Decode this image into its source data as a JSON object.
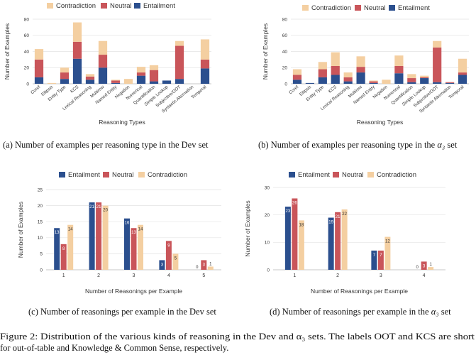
{
  "colors": {
    "entailment": "#2b4f8e",
    "neutral": "#c9555a",
    "contradiction": "#f4cfa1"
  },
  "chart_data": [
    {
      "type": "bar",
      "stacked": true,
      "panel": "a",
      "caption": "(a) Number of examples per reasoning type in the Dev set",
      "xlabel": "Reasoning Types",
      "ylabel": "Number of Examples",
      "ylim": [
        0,
        80
      ],
      "yticks": [
        0,
        20,
        40,
        60,
        80
      ],
      "grid": true,
      "legend": "top-center",
      "legend_order": [
        "Contradiction",
        "Neutral",
        "Entailment"
      ],
      "categories": [
        "Coref",
        "Ellipsis",
        "Entity Type",
        "KCS",
        "Lexical Reasoning",
        "Multirow",
        "Named Entity",
        "Negation",
        "Numerical",
        "Quantification",
        "Simple Lookup",
        "Subjective/OOT",
        "Syntactic Alternation",
        "Temporal"
      ],
      "series": [
        {
          "name": "Entailment",
          "values": [
            8,
            0,
            6,
            31,
            5,
            20,
            1,
            0,
            10,
            3,
            4,
            6,
            0,
            19
          ]
        },
        {
          "name": "Neutral",
          "values": [
            22,
            0,
            8,
            21,
            4,
            16,
            3,
            0,
            4,
            14,
            0,
            41,
            0,
            11
          ]
        },
        {
          "name": "Contradiction",
          "values": [
            13,
            1,
            6,
            24,
            3,
            17,
            1,
            6,
            7,
            6,
            0,
            6,
            0,
            25
          ]
        }
      ]
    },
    {
      "type": "bar",
      "stacked": true,
      "panel": "b",
      "caption_prefix": "(b) Number of examples per reasoning type in the ",
      "caption_set": "α₃",
      "caption_suffix": " set",
      "xlabel": "Reasoning Types",
      "ylabel": "Number of Examples",
      "ylim": [
        0,
        80
      ],
      "yticks": [
        0,
        20,
        40,
        60,
        80
      ],
      "grid": true,
      "legend": "top-center",
      "legend_order": [
        "Contradiction",
        "Neutral",
        "Entailment"
      ],
      "categories": [
        "Coref",
        "Ellipsis",
        "Entity Type",
        "KCS",
        "Lexical Reasoning",
        "Multirow",
        "Named Entity",
        "Negation",
        "Numerical",
        "Quantification",
        "Simple Lookup",
        "Subjective/OOT",
        "Syntactic Alternation",
        "Temporal"
      ],
      "series": [
        {
          "name": "Entailment",
          "values": [
            5,
            1,
            8,
            11,
            3,
            14,
            1,
            0,
            13,
            2,
            7,
            2,
            1,
            11
          ]
        },
        {
          "name": "Neutral",
          "values": [
            6,
            0,
            10,
            11,
            5,
            7,
            2,
            0,
            9,
            5,
            1,
            43,
            1,
            3
          ]
        },
        {
          "name": "Contradiction",
          "values": [
            7,
            0,
            9,
            17,
            6,
            13,
            1,
            5,
            13,
            5,
            2,
            8,
            0,
            17
          ]
        }
      ]
    },
    {
      "type": "bar",
      "stacked": false,
      "panel": "c",
      "caption": "(c) Number of reasonings per example in the Dev set",
      "xlabel": "Number of Reasonings per Example",
      "ylabel": "Number of Examples",
      "ylim": [
        0,
        25
      ],
      "yticks": [
        0,
        5,
        10,
        15,
        20,
        25
      ],
      "grid": true,
      "legend": "top",
      "legend_order": [
        "Entailment",
        "Neutral",
        "Contradiction"
      ],
      "categories": [
        "1",
        "2",
        "3",
        "4",
        "5"
      ],
      "series": [
        {
          "name": "Entailment",
          "values": [
            13,
            21,
            16,
            3,
            0
          ]
        },
        {
          "name": "Neutral",
          "values": [
            8,
            21,
            13,
            9,
            3
          ]
        },
        {
          "name": "Contradiction",
          "values": [
            14,
            20,
            14,
            5,
            1
          ]
        }
      ]
    },
    {
      "type": "bar",
      "stacked": false,
      "panel": "d",
      "caption_prefix": "(d) Number of reasonings per example in the ",
      "caption_set": "α₃",
      "caption_suffix": "  set",
      "xlabel": "Number of Reasonings per Example",
      "ylabel": "Number of Examples",
      "ylim": [
        0,
        30
      ],
      "yticks": [
        0,
        10,
        20,
        30
      ],
      "grid": true,
      "legend": "top",
      "legend_order": [
        "Entailment",
        "Neutral",
        "Contradiction"
      ],
      "categories": [
        "1",
        "2",
        "3",
        "4"
      ],
      "series": [
        {
          "name": "Entailment",
          "values": [
            23,
            19,
            7,
            0
          ]
        },
        {
          "name": "Neutral",
          "values": [
            26,
            21,
            7,
            3
          ]
        },
        {
          "name": "Contradiction",
          "values": [
            18,
            22,
            12,
            1
          ]
        }
      ]
    }
  ],
  "figure_caption": {
    "line1": "Figure 2: Distribution of the various kinds of reasoning in the Dev and α₃ sets. The labels OOT and KCS are short",
    "line2": "for out-of-table and Knowledge & Common Sense, respectively."
  }
}
